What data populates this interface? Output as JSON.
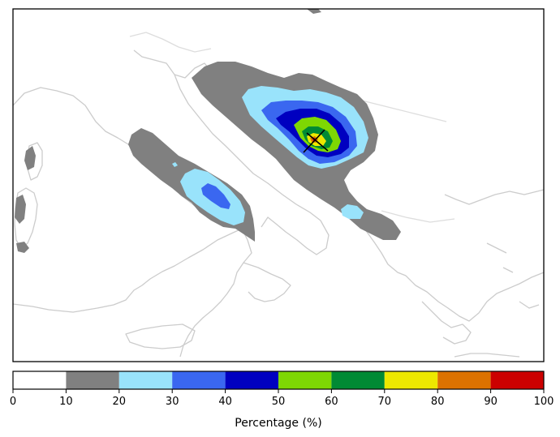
{
  "colorbar": {
    "title": "Percentage (%)",
    "ticks": [
      "0",
      "10",
      "20",
      "30",
      "40",
      "50",
      "60",
      "70",
      "80",
      "90",
      "100"
    ],
    "bins": [
      {
        "range": "0-10",
        "color": "#ffffff"
      },
      {
        "range": "10-20",
        "color": "#808080"
      },
      {
        "range": "20-30",
        "color": "#99e3fb"
      },
      {
        "range": "30-40",
        "color": "#3a67f0"
      },
      {
        "range": "40-50",
        "color": "#0000c0"
      },
      {
        "range": "50-60",
        "color": "#7ed703"
      },
      {
        "range": "60-70",
        "color": "#008a34"
      },
      {
        "range": "70-80",
        "color": "#ede800"
      },
      {
        "range": "80-90",
        "color": "#dc7200"
      },
      {
        "range": "90-100",
        "color": "#cc0000"
      }
    ]
  },
  "map": {
    "coastline_color": "#cccccc",
    "land_color": "#ffffff"
  }
}
